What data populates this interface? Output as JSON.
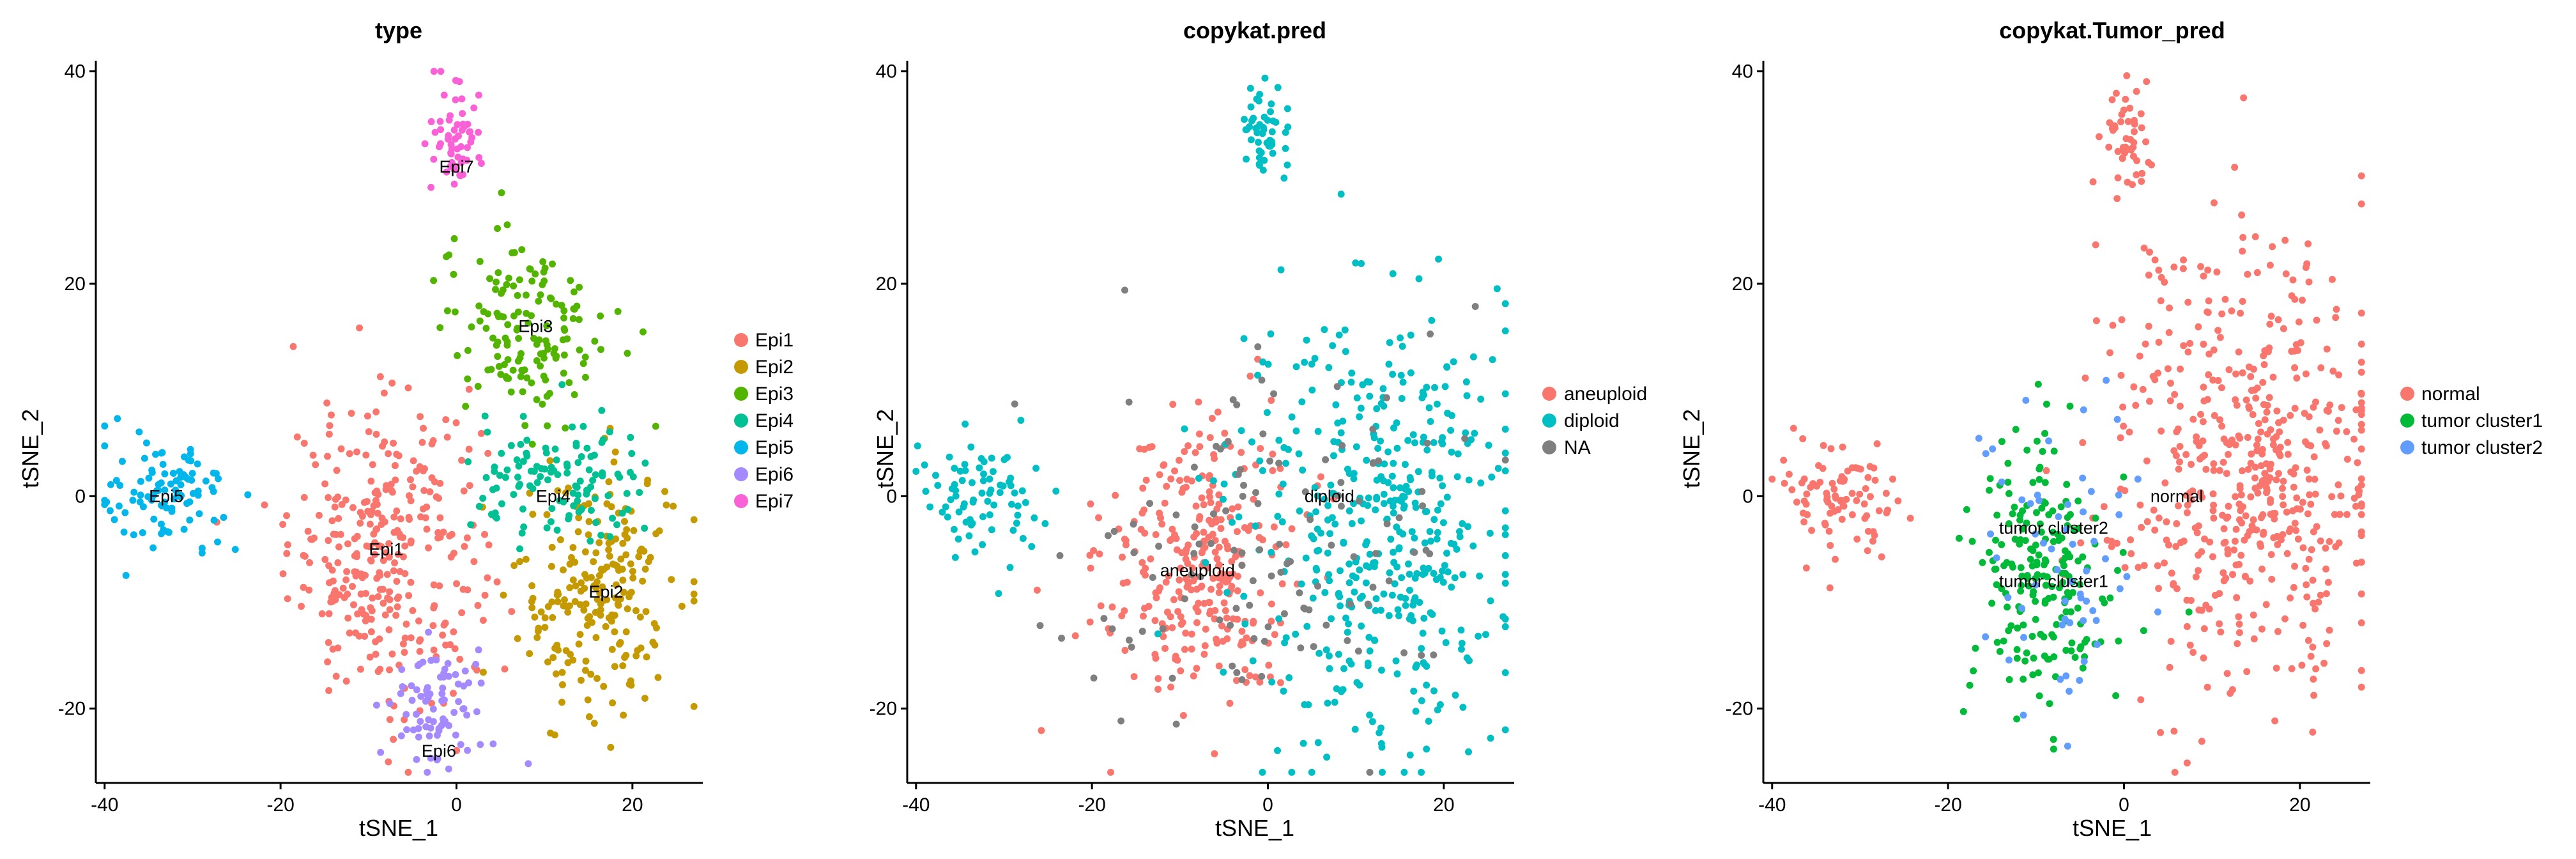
{
  "figure": {
    "colors": {
      "Epi1": "#F8766D",
      "Epi2": "#C49A00",
      "Epi3": "#53B400",
      "Epi4": "#00C094",
      "Epi5": "#00B6EB",
      "Epi6": "#A58AFF",
      "Epi7": "#FB61D7",
      "aneuploid": "#F8766D",
      "diploid": "#00BFC4",
      "NA": "#7F7F7F",
      "normal": "#F8766D",
      "tumor cluster1": "#00BA38",
      "tumor cluster2": "#619CFF"
    }
  },
  "chart_data": [
    {
      "type": "scatter",
      "title": "type",
      "xlabel": "tSNE_1",
      "ylabel": "tSNE_2",
      "xlim": [
        -41,
        28
      ],
      "ylim": [
        -27,
        41
      ],
      "xticks": [
        -40,
        -20,
        0,
        20
      ],
      "yticks": [
        -20,
        0,
        20,
        40
      ],
      "grid": false,
      "legend_position": "right",
      "legend": [
        "Epi1",
        "Epi2",
        "Epi3",
        "Epi4",
        "Epi5",
        "Epi6",
        "Epi7"
      ],
      "cluster_labels": [
        {
          "text": "Epi1",
          "x": -8,
          "y": -5
        },
        {
          "text": "Epi2",
          "x": 17,
          "y": -9
        },
        {
          "text": "Epi3",
          "x": 9,
          "y": 16
        },
        {
          "text": "Epi4",
          "x": 11,
          "y": 0
        },
        {
          "text": "Epi5",
          "x": -33,
          "y": 0
        },
        {
          "text": "Epi6",
          "x": -2,
          "y": -24
        },
        {
          "text": "Epi7",
          "x": 0,
          "y": 31
        }
      ],
      "clusters": [
        {
          "category": "Epi1",
          "cx": -8,
          "cy": -5,
          "sx": 5.5,
          "sy": 7,
          "n": 320
        },
        {
          "category": "Epi2",
          "cx": 16,
          "cy": -9,
          "sx": 4.5,
          "sy": 6,
          "n": 220
        },
        {
          "category": "Epi3",
          "cx": 8,
          "cy": 16,
          "sx": 5,
          "sy": 4.5,
          "n": 150
        },
        {
          "category": "Epi4",
          "cx": 12,
          "cy": 1,
          "sx": 5,
          "sy": 3,
          "n": 120
        },
        {
          "category": "Epi5",
          "cx": -33,
          "cy": 0,
          "sx": 3.5,
          "sy": 2.5,
          "n": 100
        },
        {
          "category": "Epi6",
          "cx": -2,
          "cy": -20,
          "sx": 3,
          "sy": 3,
          "n": 80
        },
        {
          "category": "Epi7",
          "cx": 0,
          "cy": 34,
          "sx": 1.5,
          "sy": 2.5,
          "n": 60
        }
      ]
    },
    {
      "type": "scatter",
      "title": "copykat.pred",
      "xlabel": "tSNE_1",
      "ylabel": "tSNE_2",
      "xlim": [
        -41,
        28
      ],
      "ylim": [
        -27,
        41
      ],
      "xticks": [
        -40,
        -20,
        0,
        20
      ],
      "yticks": [
        -20,
        0,
        20,
        40
      ],
      "grid": false,
      "legend_position": "right",
      "legend": [
        "aneuploid",
        "diploid",
        "NA"
      ],
      "cluster_labels": [
        {
          "text": "aneuploid",
          "x": -8,
          "y": -7
        },
        {
          "text": "diploid",
          "x": 7,
          "y": 0
        }
      ],
      "clusters": [
        {
          "category": "aneuploid",
          "cx": -8,
          "cy": -6,
          "sx": 5.5,
          "sy": 7,
          "n": 300
        },
        {
          "category": "diploid",
          "cx": 12,
          "cy": -3,
          "sx": 8,
          "sy": 10,
          "n": 450
        },
        {
          "category": "diploid",
          "cx": -33,
          "cy": 0,
          "sx": 3.5,
          "sy": 2.5,
          "n": 80
        },
        {
          "category": "diploid",
          "cx": 0,
          "cy": 34,
          "sx": 1.5,
          "sy": 2.5,
          "n": 50
        },
        {
          "category": "NA",
          "cx": 0,
          "cy": -5,
          "sx": 12,
          "sy": 9,
          "n": 120
        }
      ]
    },
    {
      "type": "scatter",
      "title": "copykat.Tumor_pred",
      "xlabel": "tSNE_1",
      "ylabel": "tSNE_2",
      "xlim": [
        -41,
        28
      ],
      "ylim": [
        -27,
        41
      ],
      "xticks": [
        -40,
        -20,
        0,
        20
      ],
      "yticks": [
        -20,
        0,
        20,
        40
      ],
      "grid": false,
      "legend_position": "right",
      "legend": [
        "normal",
        "tumor cluster1",
        "tumor cluster2"
      ],
      "cluster_labels": [
        {
          "text": "normal",
          "x": 6,
          "y": 0
        },
        {
          "text": "tumor cluster2",
          "x": -8,
          "y": -3
        },
        {
          "text": "tumor cluster1",
          "x": -8,
          "y": -8
        }
      ],
      "clusters": [
        {
          "category": "normal",
          "cx": 14,
          "cy": 2,
          "sx": 8,
          "sy": 11,
          "n": 520
        },
        {
          "category": "normal",
          "cx": -33,
          "cy": 0,
          "sx": 3.5,
          "sy": 2.5,
          "n": 90
        },
        {
          "category": "normal",
          "cx": 0,
          "cy": 34,
          "sx": 1.5,
          "sy": 2.5,
          "n": 50
        },
        {
          "category": "tumor cluster1",
          "cx": -9,
          "cy": -8,
          "sx": 4,
          "sy": 7,
          "n": 200
        },
        {
          "category": "tumor cluster2",
          "cx": -7,
          "cy": -4,
          "sx": 4.5,
          "sy": 8,
          "n": 60
        }
      ]
    }
  ]
}
